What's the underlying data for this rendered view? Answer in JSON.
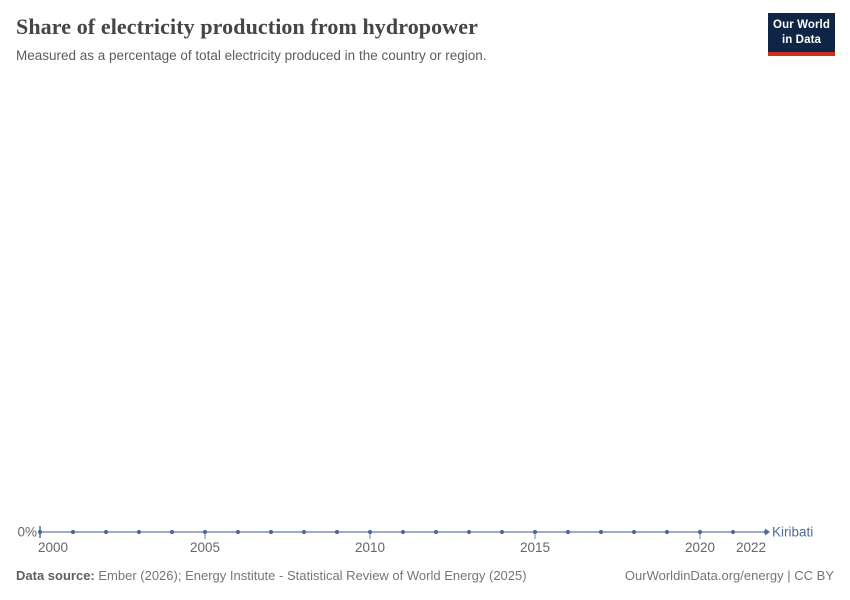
{
  "header": {
    "title": "Share of electricity production from hydropower",
    "subtitle": "Measured as a percentage of total electricity produced in the country or region.",
    "logo": {
      "line1": "Our World",
      "line2": "in Data",
      "bg_color": "#0e2546",
      "accent_color": "#d1301f"
    }
  },
  "chart_data": {
    "type": "line",
    "title": "Share of electricity production from hydropower",
    "subtitle": "Measured as a percentage of total electricity produced in the country or region.",
    "xlabel": "",
    "ylabel": "",
    "grid": false,
    "legend_position": "end-of-line",
    "x_range": [
      2000,
      2022
    ],
    "x_ticks": [
      2000,
      2005,
      2010,
      2015,
      2020,
      2022
    ],
    "y_ticks": [
      "0%"
    ],
    "ylim": [
      0,
      100
    ],
    "series": [
      {
        "name": "Kiribati",
        "color": "#4c6a9c",
        "x": [
          2000,
          2001,
          2002,
          2003,
          2004,
          2005,
          2006,
          2007,
          2008,
          2009,
          2010,
          2011,
          2012,
          2013,
          2014,
          2015,
          2016,
          2017,
          2018,
          2019,
          2020,
          2021,
          2022
        ],
        "values": [
          0,
          0,
          0,
          0,
          0,
          0,
          0,
          0,
          0,
          0,
          0,
          0,
          0,
          0,
          0,
          0,
          0,
          0,
          0,
          0,
          0,
          0,
          0
        ],
        "unit": "%"
      }
    ],
    "axis_text_color": "#666666"
  },
  "footer": {
    "data_source_label": "Data source:",
    "data_source_text": " Ember (2026); Energy Institute - Statistical Review of World Energy (2025)",
    "url_text": "OurWorldinData.org/energy",
    "divider": " | ",
    "license_text": "CC BY"
  }
}
